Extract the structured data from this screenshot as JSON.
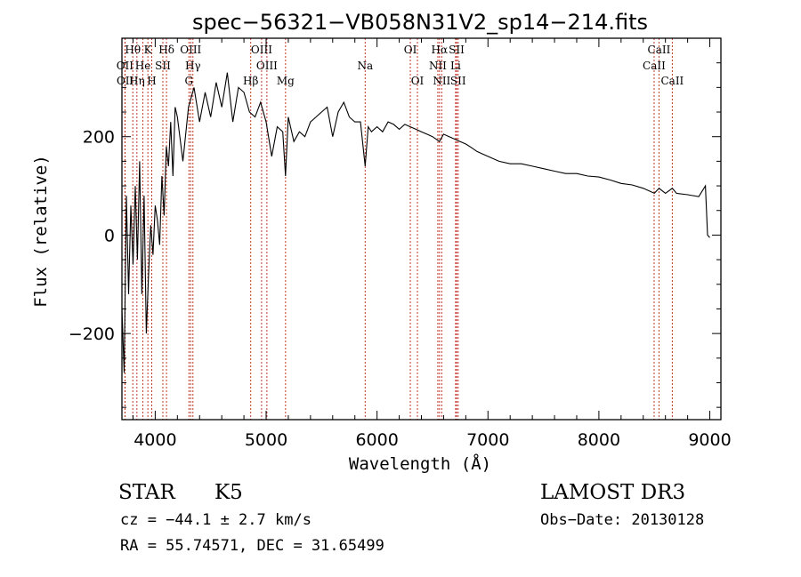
{
  "chart_data": {
    "type": "line",
    "title": "spec−56321−VB058N31V2_sp14−214.fits",
    "xlabel": "Wavelength (Å)",
    "ylabel": "Flux (relative)",
    "xlim": [
      3700,
      9100
    ],
    "ylim": [
      -375,
      400
    ],
    "x_ticks": [
      4000,
      5000,
      6000,
      7000,
      8000,
      9000
    ],
    "x_tick_labels": [
      "4000",
      "5000",
      "6000",
      "7000",
      "8000",
      "9000"
    ],
    "y_ticks": [
      200,
      0,
      -200
    ],
    "y_tick_labels": [
      "200",
      "0",
      "−200"
    ],
    "grid": false,
    "series": [
      {
        "name": "flux",
        "x": [
          3700,
          3720,
          3740,
          3760,
          3780,
          3800,
          3820,
          3840,
          3860,
          3880,
          3900,
          3920,
          3940,
          3960,
          3980,
          4000,
          4020,
          4040,
          4060,
          4080,
          4100,
          4120,
          4140,
          4160,
          4180,
          4200,
          4250,
          4300,
          4350,
          4400,
          4450,
          4500,
          4550,
          4600,
          4650,
          4700,
          4750,
          4800,
          4850,
          4900,
          4950,
          5000,
          5050,
          5100,
          5150,
          5175,
          5200,
          5250,
          5300,
          5350,
          5400,
          5450,
          5500,
          5550,
          5600,
          5650,
          5700,
          5750,
          5800,
          5850,
          5893,
          5920,
          5950,
          6000,
          6050,
          6100,
          6150,
          6200,
          6250,
          6300,
          6350,
          6400,
          6450,
          6500,
          6563,
          6600,
          6650,
          6700,
          6750,
          6800,
          6850,
          6900,
          6950,
          7000,
          7100,
          7200,
          7300,
          7400,
          7500,
          7600,
          7700,
          7800,
          7900,
          8000,
          8100,
          8200,
          8300,
          8400,
          8500,
          8542,
          8600,
          8662,
          8700,
          8800,
          8900,
          8960,
          8980,
          9000
        ],
        "values": [
          -150,
          -280,
          80,
          -120,
          60,
          -60,
          100,
          -50,
          150,
          -120,
          80,
          -200,
          -80,
          20,
          -40,
          60,
          30,
          -20,
          120,
          40,
          180,
          140,
          230,
          120,
          260,
          240,
          150,
          260,
          300,
          230,
          290,
          240,
          310,
          260,
          330,
          230,
          300,
          290,
          250,
          240,
          270,
          230,
          160,
          220,
          210,
          120,
          240,
          190,
          210,
          200,
          230,
          240,
          250,
          260,
          200,
          250,
          270,
          240,
          230,
          230,
          140,
          220,
          210,
          220,
          210,
          230,
          225,
          215,
          225,
          220,
          215,
          210,
          205,
          200,
          190,
          205,
          200,
          195,
          190,
          185,
          178,
          170,
          165,
          160,
          150,
          145,
          145,
          140,
          135,
          130,
          125,
          125,
          120,
          118,
          112,
          105,
          102,
          95,
          85,
          95,
          85,
          95,
          85,
          82,
          78,
          100,
          0,
          -5
        ],
        "color": "#000000"
      }
    ],
    "lines": [
      {
        "name": "Hθ",
        "wavelength": 3798,
        "row": 1
      },
      {
        "name": "OII",
        "wavelength": 3727,
        "row": 2
      },
      {
        "name": "OII",
        "wavelength": 3729,
        "row": 3
      },
      {
        "name": "Hη",
        "wavelength": 3835,
        "row": 3
      },
      {
        "name": "He",
        "wavelength": 3889,
        "row": 2
      },
      {
        "name": "K",
        "wavelength": 3934,
        "row": 1
      },
      {
        "name": "H",
        "wavelength": 3969,
        "row": 3
      },
      {
        "name": "SII",
        "wavelength": 4069,
        "row": 2
      },
      {
        "name": "Hδ",
        "wavelength": 4102,
        "row": 1
      },
      {
        "name": "OIII",
        "wavelength": 4320,
        "row": 1
      },
      {
        "name": "Hγ",
        "wavelength": 4340,
        "row": 2
      },
      {
        "name": "G",
        "wavelength": 4304,
        "row": 3
      },
      {
        "name": "OIII",
        "wavelength": 4959,
        "row": 1
      },
      {
        "name": "OIII",
        "wavelength": 5007,
        "row": 2
      },
      {
        "name": "Hβ",
        "wavelength": 4861,
        "row": 3
      },
      {
        "name": "Mg",
        "wavelength": 5175,
        "row": 3
      },
      {
        "name": "Na",
        "wavelength": 5893,
        "row": 2
      },
      {
        "name": "OI",
        "wavelength": 6300,
        "row": 1
      },
      {
        "name": "OI",
        "wavelength": 6364,
        "row": 3
      },
      {
        "name": "Hα",
        "wavelength": 6563,
        "row": 1
      },
      {
        "name": "SII",
        "wavelength": 6717,
        "row": 1
      },
      {
        "name": "NII",
        "wavelength": 6548,
        "row": 2
      },
      {
        "name": "Li",
        "wavelength": 6708,
        "row": 2
      },
      {
        "name": "NII",
        "wavelength": 6583,
        "row": 3
      },
      {
        "name": "SII",
        "wavelength": 6731,
        "row": 3
      },
      {
        "name": "CaII",
        "wavelength": 8542,
        "row": 1
      },
      {
        "name": "CaII",
        "wavelength": 8498,
        "row": 2
      },
      {
        "name": "CaII",
        "wavelength": 8662,
        "row": 3
      }
    ]
  },
  "info": {
    "class": "STAR",
    "subclass": "K5",
    "survey": "LAMOST DR3",
    "cz": "cz = −44.1 ± 2.7 km/s",
    "obs_date": "Obs−Date: 20130128",
    "coords": "RA =  55.74571, DEC =  31.65499"
  }
}
